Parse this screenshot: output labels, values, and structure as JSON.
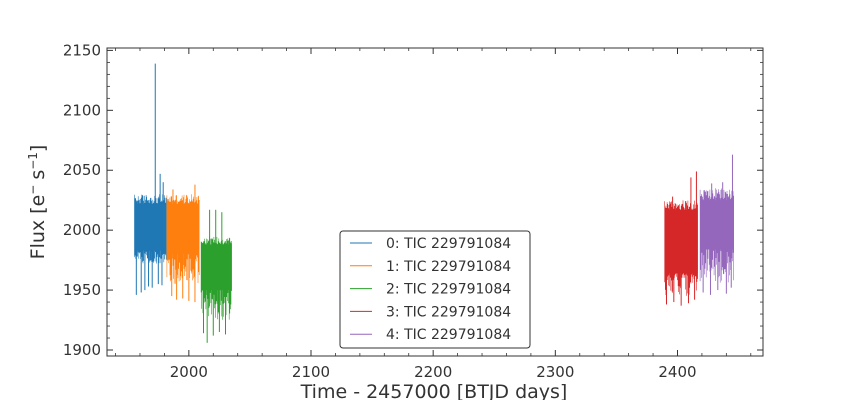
{
  "chart_data": {
    "type": "line",
    "title": "",
    "xlabel": "Time - 2457000 [BTJD days]",
    "ylabel_main": "Flux [e",
    "ylabel_sup1": "−",
    "ylabel_mid": "s",
    "ylabel_sup2": "−1",
    "ylabel_end": "]",
    "xlim": [
      1933,
      2470
    ],
    "ylim": [
      1895,
      2152
    ],
    "x_ticks": [
      2000,
      2100,
      2200,
      2300,
      2400
    ],
    "y_ticks": [
      1900,
      1950,
      2000,
      2050,
      2100,
      2150
    ],
    "legend_position": "lower-center",
    "series": [
      {
        "name": "0: TIC 229791084",
        "color": "#1f77b4",
        "x_range": [
          1955.5,
          1981.5
        ],
        "band": [
          1983,
          2022
        ],
        "whisker": [
          1972,
          2030
        ],
        "dips": [
          [
            1957,
            1946
          ],
          [
            1961,
            1948
          ],
          [
            1964,
            1950
          ],
          [
            1967,
            1953
          ],
          [
            1970,
            1952
          ],
          [
            1975,
            1955
          ],
          [
            1978,
            1954
          ]
        ],
        "spikes": [
          [
            1972.5,
            2139
          ],
          [
            1976.5,
            2047
          ],
          [
            1979,
            2040
          ]
        ]
      },
      {
        "name": "1: TIC 229791084",
        "color": "#ff7f0e",
        "x_range": [
          1982,
          2008.5
        ],
        "band": [
          1980,
          2022
        ],
        "whisker": [
          1955,
          2030
        ],
        "dips": [
          [
            1986,
            1945
          ],
          [
            1990,
            1942
          ],
          [
            1995,
            1943
          ],
          [
            2000,
            1941
          ],
          [
            2005,
            1940
          ]
        ],
        "spikes": [
          [
            1987,
            2034
          ],
          [
            2005,
            2038
          ]
        ]
      },
      {
        "name": "2: TIC 229791084",
        "color": "#2ca02c",
        "x_range": [
          2010,
          2035
        ],
        "band": [
          1950,
          1988
        ],
        "whisker": [
          1925,
          1995
        ],
        "dips": [
          [
            2012,
            1914
          ],
          [
            2015,
            1906
          ],
          [
            2020,
            1912
          ],
          [
            2025,
            1915
          ],
          [
            2030,
            1913
          ]
        ],
        "spikes": [
          [
            2017,
            2017
          ],
          [
            2022,
            2017
          ],
          [
            2027,
            2015
          ]
        ]
      },
      {
        "name": "3: TIC 229791084",
        "color": "#d62728",
        "x_range": [
          2389.5,
          2416.5
        ],
        "band": [
          1964,
          2017
        ],
        "whisker": [
          1945,
          2025
        ],
        "dips": [
          [
            2391,
            1938
          ],
          [
            2397,
            1940
          ],
          [
            2403,
            1937
          ],
          [
            2409,
            1939
          ],
          [
            2414,
            1942
          ]
        ],
        "spikes": [
          [
            2396,
            2028
          ],
          [
            2411,
            2044
          ],
          [
            2415.5,
            2049
          ]
        ]
      },
      {
        "name": "4: TIC 229791084",
        "color": "#9467bd",
        "x_range": [
          2418.5,
          2446
        ],
        "band": [
          1984,
          2025
        ],
        "whisker": [
          1955,
          2035
        ],
        "dips": [
          [
            2421,
            1948
          ],
          [
            2427,
            1946
          ],
          [
            2433,
            1950
          ],
          [
            2440,
            1947
          ],
          [
            2444,
            1952
          ]
        ],
        "spikes": [
          [
            2428,
            2039
          ],
          [
            2437,
            2040
          ],
          [
            2445,
            2063
          ]
        ]
      }
    ]
  }
}
